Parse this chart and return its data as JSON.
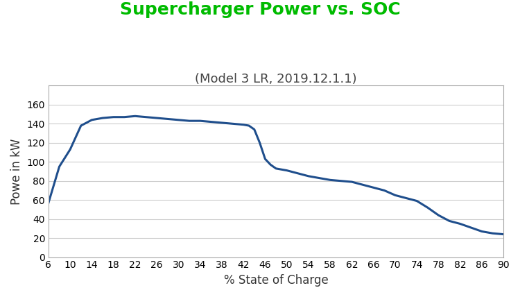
{
  "title": "Supercharger Power vs. SOC",
  "subtitle": "(Model 3 LR, 2019.12.1.1)",
  "xlabel": "% State of Charge",
  "ylabel": "Powe in kW",
  "title_color": "#00BB00",
  "subtitle_color": "#444444",
  "line_color": "#1F4E8C",
  "background_color": "#FFFFFF",
  "border_color": "#AAAAAA",
  "x": [
    6,
    8,
    10,
    12,
    14,
    16,
    18,
    20,
    22,
    24,
    26,
    28,
    30,
    32,
    34,
    36,
    38,
    40,
    42,
    43,
    44,
    45,
    46,
    47,
    48,
    50,
    52,
    54,
    56,
    58,
    60,
    62,
    64,
    66,
    68,
    70,
    72,
    74,
    76,
    78,
    80,
    82,
    84,
    86,
    88,
    90
  ],
  "y": [
    57,
    95,
    113,
    138,
    144,
    146,
    147,
    147,
    148,
    147,
    146,
    145,
    144,
    143,
    143,
    142,
    141,
    140,
    139,
    138,
    134,
    120,
    103,
    97,
    93,
    91,
    88,
    85,
    83,
    81,
    80,
    79,
    76,
    73,
    70,
    65,
    62,
    59,
    52,
    44,
    38,
    35,
    31,
    27,
    25,
    24
  ],
  "xlim": [
    6,
    90
  ],
  "ylim": [
    0,
    180
  ],
  "xticks": [
    6,
    10,
    14,
    18,
    22,
    26,
    30,
    34,
    38,
    42,
    46,
    50,
    54,
    58,
    62,
    66,
    70,
    74,
    78,
    82,
    86,
    90
  ],
  "yticks": [
    0,
    20,
    40,
    60,
    80,
    100,
    120,
    140,
    160
  ],
  "line_width": 2.2,
  "title_fontsize": 18,
  "subtitle_fontsize": 13,
  "axis_label_fontsize": 12,
  "tick_fontsize": 10,
  "grid_color": "#CCCCCC",
  "grid_alpha": 1.0
}
